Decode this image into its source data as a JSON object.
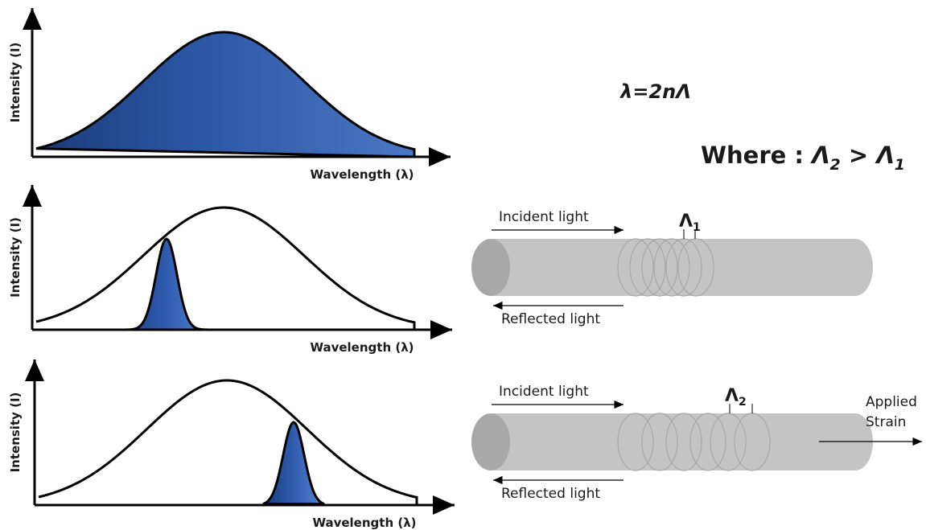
{
  "equation": "λ=2nΛ",
  "where": {
    "text": "Where :",
    "left": "Λ",
    "left_sub": "2",
    "op": ">",
    "right": "Λ",
    "right_sub": "1"
  },
  "panels": [
    {
      "y_label": "Intensity (I)",
      "x_label": "Wavelength (λ)"
    },
    {
      "y_label": "Intensity (I)",
      "x_label": "Wavelength (λ)"
    },
    {
      "y_label": "Intensity (I)",
      "x_label": "Wavelength (λ)"
    }
  ],
  "fibers": [
    {
      "incident": "Incident light",
      "reflected": "Reflected light",
      "period": "Λ",
      "period_sub": "1"
    },
    {
      "incident": "Incident light",
      "reflected": "Reflected light",
      "period": "Λ",
      "period_sub": "2"
    }
  ],
  "strain": [
    "Applied",
    "Strain"
  ]
}
